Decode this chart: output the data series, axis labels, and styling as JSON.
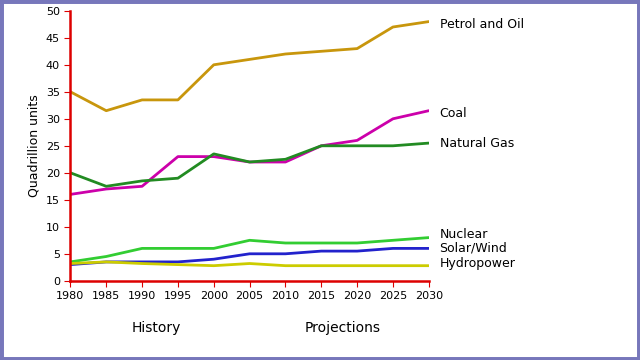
{
  "years": [
    1980,
    1985,
    1990,
    1995,
    2000,
    2005,
    2010,
    2015,
    2020,
    2025,
    2030
  ],
  "petrol_and_oil": [
    35,
    31.5,
    33.5,
    33.5,
    40,
    41,
    42,
    42.5,
    43,
    47,
    48
  ],
  "coal": [
    16,
    17,
    17.5,
    23,
    23,
    22,
    22,
    25,
    26,
    30,
    31.5
  ],
  "natural_gas": [
    20,
    17.5,
    18.5,
    19,
    23.5,
    22,
    22.5,
    25,
    25,
    25,
    25.5
  ],
  "nuclear": [
    3.5,
    4.5,
    6,
    6,
    6,
    7.5,
    7,
    7,
    7,
    7.5,
    8
  ],
  "solar_wind": [
    3,
    3.5,
    3.5,
    3.5,
    4,
    5,
    5,
    5.5,
    5.5,
    6,
    6
  ],
  "hydropower": [
    3.2,
    3.5,
    3.2,
    3.0,
    2.8,
    3.2,
    2.8,
    2.8,
    2.8,
    2.8,
    2.8
  ],
  "colors": {
    "petrol_and_oil": "#c8960c",
    "coal": "#cc00aa",
    "natural_gas": "#228B22",
    "nuclear": "#32CD32",
    "solar_wind": "#2222cc",
    "hydropower": "#cccc00"
  },
  "ylabel": "Quadrillion units",
  "ylim": [
    0,
    50
  ],
  "yticks": [
    0,
    5,
    10,
    15,
    20,
    25,
    30,
    35,
    40,
    45,
    50
  ],
  "xlim": [
    1980,
    2030
  ],
  "xticks": [
    1980,
    1985,
    1990,
    1995,
    2000,
    2005,
    2010,
    2015,
    2020,
    2025,
    2030
  ],
  "background_color": "#ffffff",
  "border_color": "#7777bb",
  "axis_color": "#dd0000",
  "label_petrol": "Petrol and Oil",
  "label_coal": "Coal",
  "label_gas": "Natural Gas",
  "label_nuclear": "Nuclear",
  "label_solar": "Solar/Wind",
  "label_hydro": "Hydropower",
  "label_history": "History",
  "label_projections": "Projections",
  "label_font_size": 9,
  "tick_font_size": 8,
  "ylabel_font_size": 9
}
